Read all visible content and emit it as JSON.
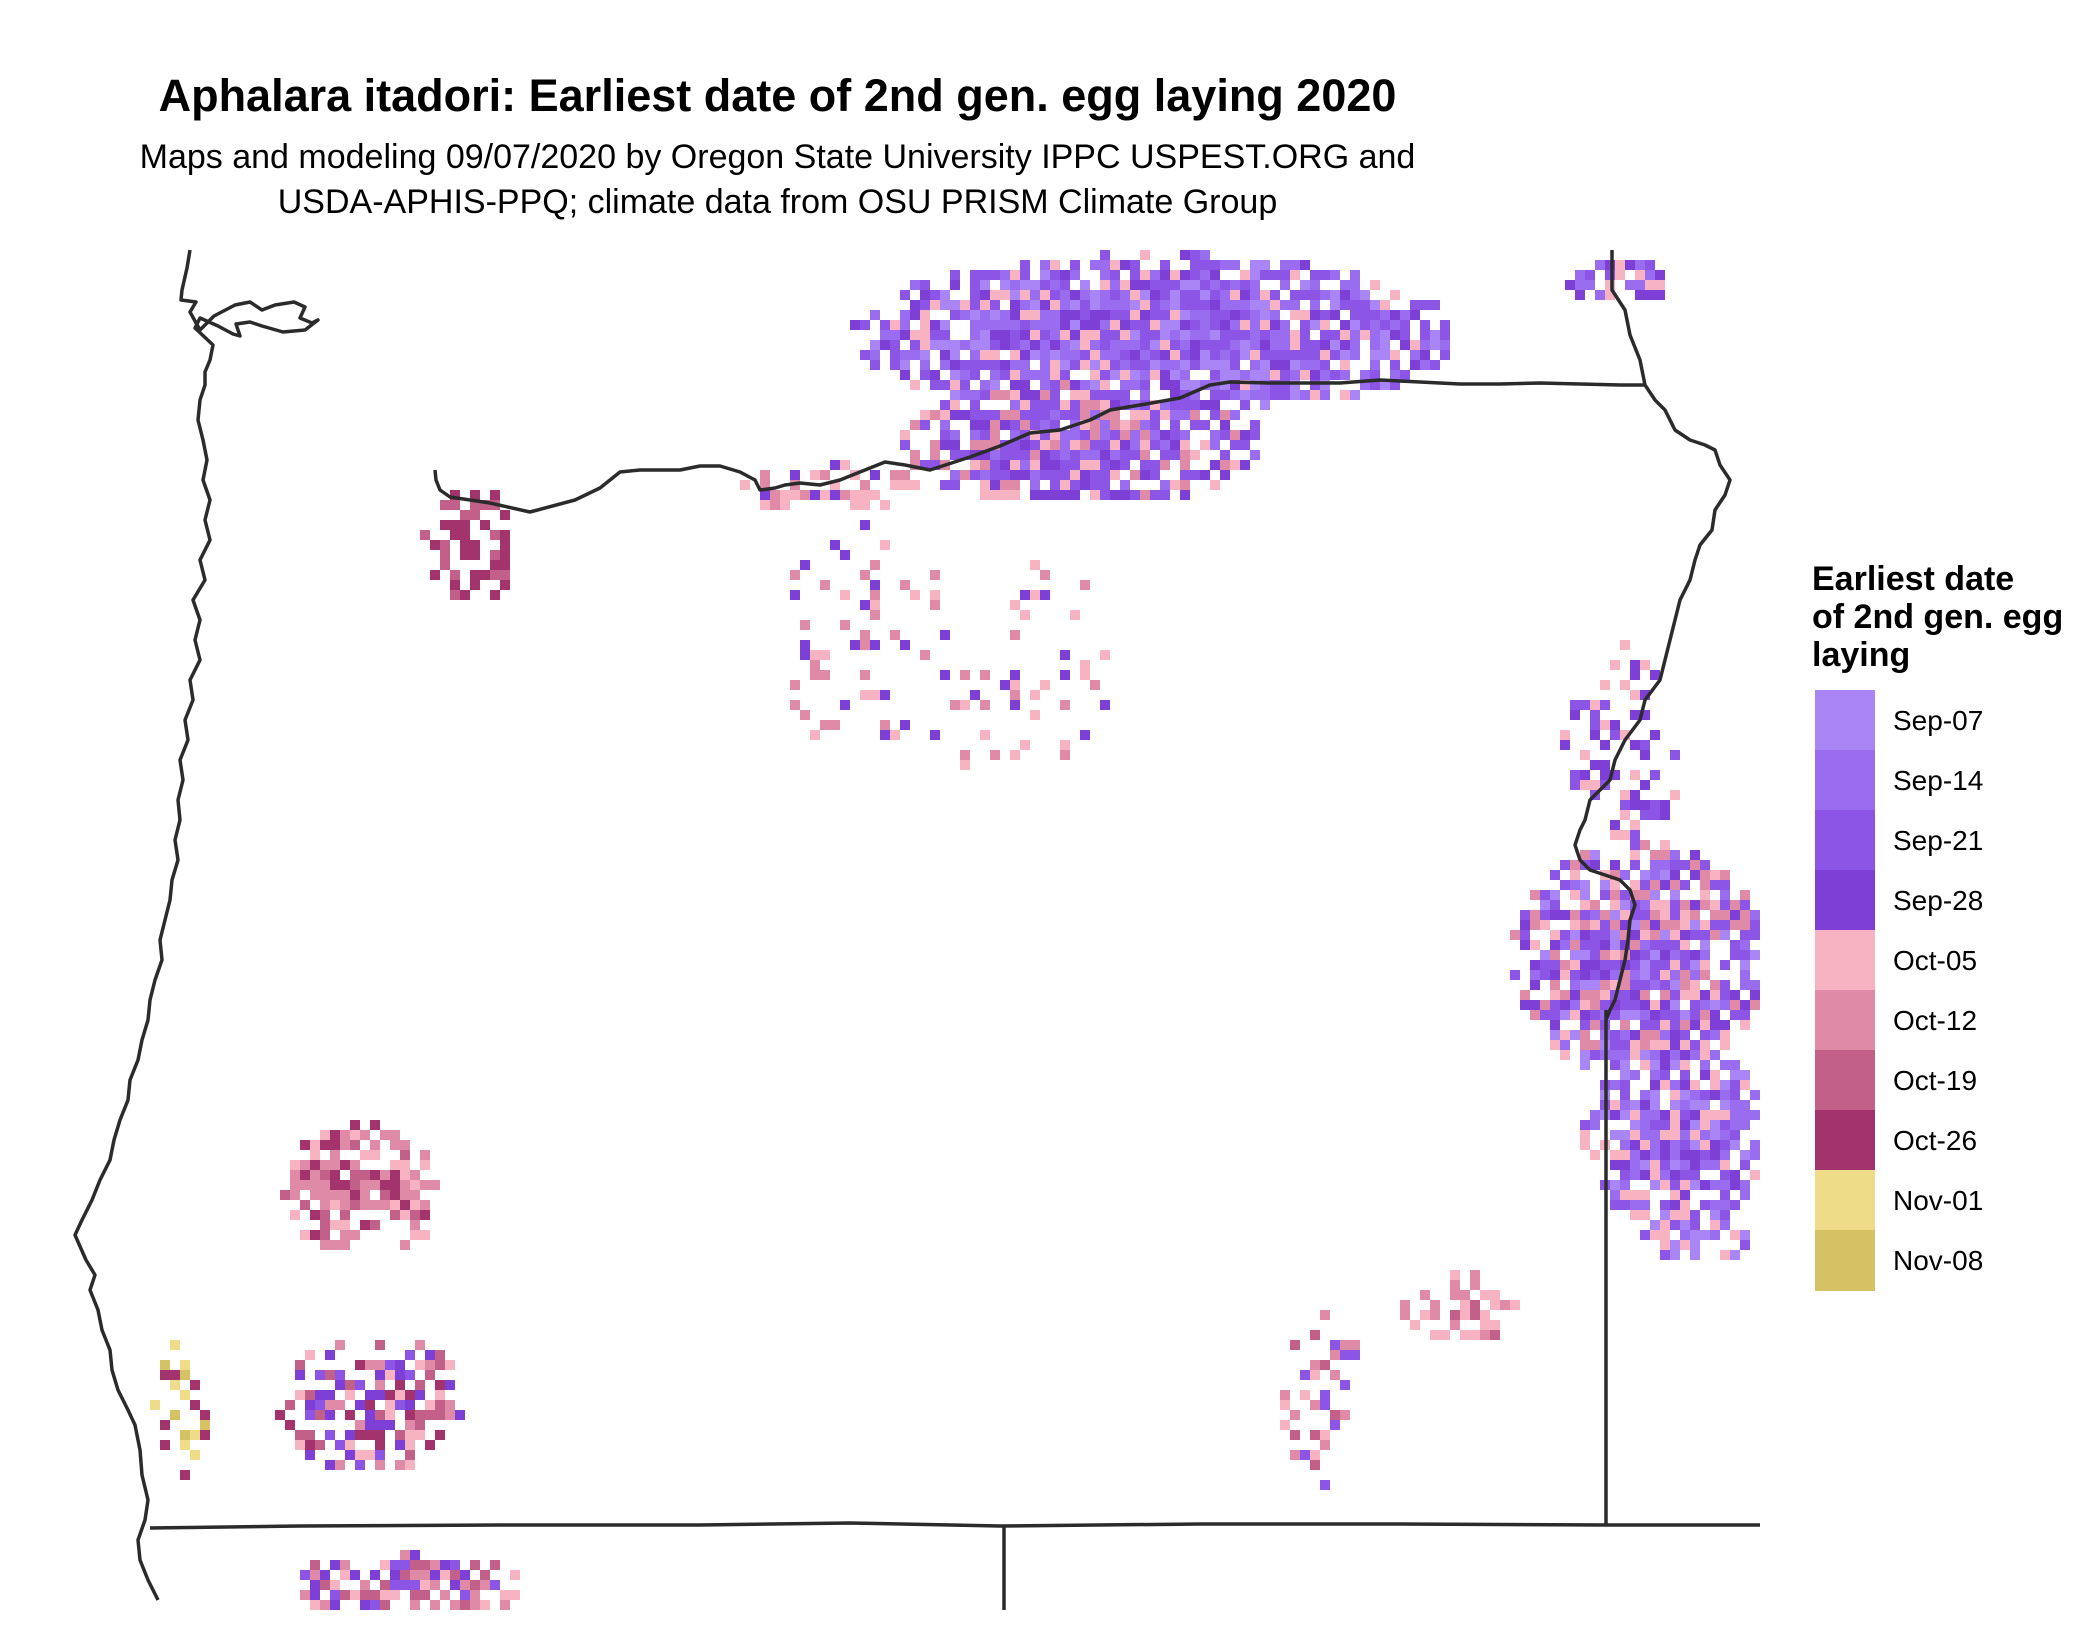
{
  "title": "Aphalara itadori: Earliest date of 2nd gen. egg laying 2020",
  "subtitle_lines": [
    "Maps and modeling 09/07/2020 by Oregon State University IPPC USPEST.ORG and",
    "USDA-APHIS-PPQ; climate data from OSU PRISM Climate Group"
  ],
  "legend": {
    "title_lines": [
      "Earliest date",
      "of 2nd gen. egg",
      "laying"
    ],
    "items": [
      {
        "label": "Sep-07",
        "color": "#a985f5"
      },
      {
        "label": "Sep-14",
        "color": "#9a6cf0"
      },
      {
        "label": "Sep-21",
        "color": "#8c55e6"
      },
      {
        "label": "Sep-28",
        "color": "#7e3fd6"
      },
      {
        "label": "Oct-05",
        "color": "#f7b3c2"
      },
      {
        "label": "Oct-12",
        "color": "#df8aa6"
      },
      {
        "label": "Oct-19",
        "color": "#c2608a"
      },
      {
        "label": "Oct-26",
        "color": "#a3336c"
      },
      {
        "label": "Nov-01",
        "color": "#eedc88"
      },
      {
        "label": "Nov-08",
        "color": "#d5c264"
      }
    ]
  }
}
